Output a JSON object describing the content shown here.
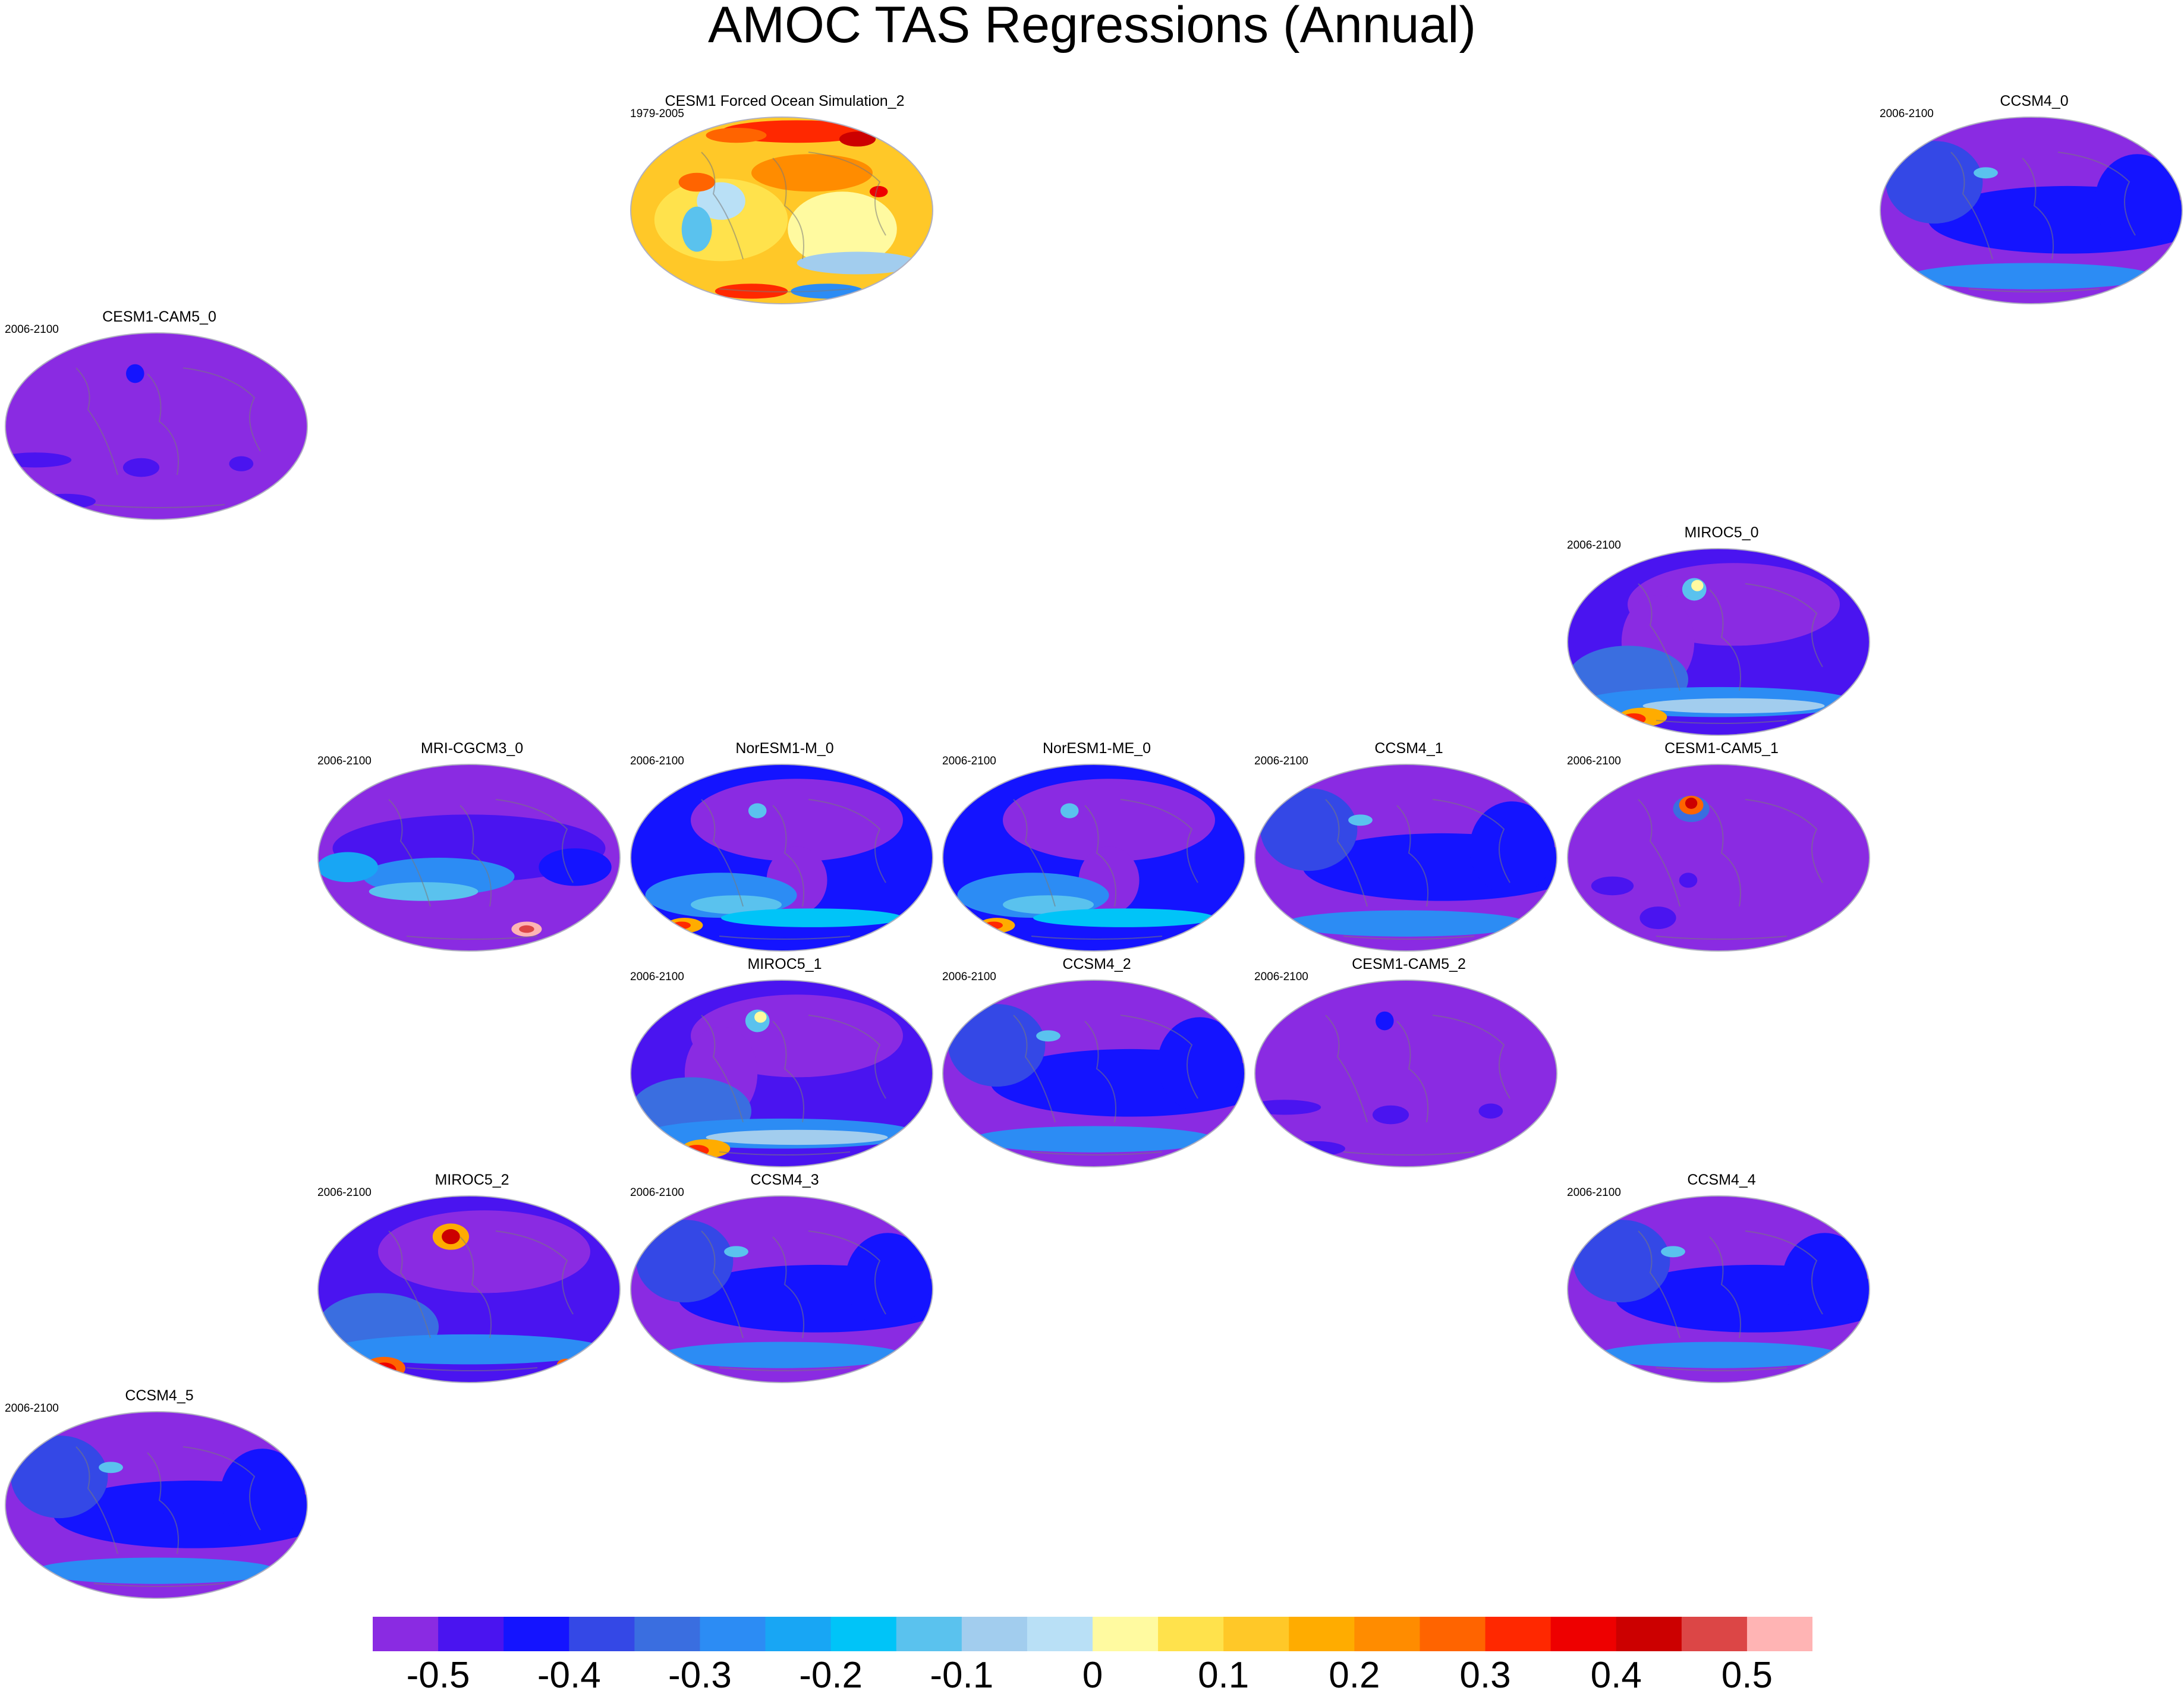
{
  "title": "AMOC TAS Regressions (Annual)",
  "panels": [
    {
      "title": "CESM1 Forced Ocean Simulation_2",
      "period": "1979-2005",
      "col": 2,
      "row": 0,
      "style": "obs"
    },
    {
      "title": "CCSM4_0",
      "period": "2006-2100",
      "col": 6,
      "row": 0,
      "style": "ccsm4"
    },
    {
      "title": "CESM1-CAM5_0",
      "period": "2006-2100",
      "col": 0,
      "row": 1,
      "style": "cam5"
    },
    {
      "title": "MIROC5_0",
      "period": "2006-2100",
      "col": 5,
      "row": 2,
      "style": "miroc"
    },
    {
      "title": "MRI-CGCM3_0",
      "period": "2006-2100",
      "col": 1,
      "row": 3,
      "style": "mri"
    },
    {
      "title": "NorESM1-M_0",
      "period": "2006-2100",
      "col": 2,
      "row": 3,
      "style": "noresm"
    },
    {
      "title": "NorESM1-ME_0",
      "period": "2006-2100",
      "col": 3,
      "row": 3,
      "style": "noresm"
    },
    {
      "title": "CCSM4_1",
      "period": "2006-2100",
      "col": 4,
      "row": 3,
      "style": "ccsm4"
    },
    {
      "title": "CESM1-CAM5_1",
      "period": "2006-2100",
      "col": 5,
      "row": 3,
      "style": "cam5hot"
    },
    {
      "title": "MIROC5_1",
      "period": "2006-2100",
      "col": 2,
      "row": 4,
      "style": "miroc"
    },
    {
      "title": "CCSM4_2",
      "period": "2006-2100",
      "col": 3,
      "row": 4,
      "style": "ccsm4"
    },
    {
      "title": "CESM1-CAM5_2",
      "period": "2006-2100",
      "col": 4,
      "row": 4,
      "style": "cam5"
    },
    {
      "title": "MIROC5_2",
      "period": "2006-2100",
      "col": 1,
      "row": 5,
      "style": "mirochot"
    },
    {
      "title": "CCSM4_3",
      "period": "2006-2100",
      "col": 2,
      "row": 5,
      "style": "ccsm4"
    },
    {
      "title": "CCSM4_4",
      "period": "2006-2100",
      "col": 5,
      "row": 5,
      "style": "ccsm4"
    },
    {
      "title": "CCSM4_5",
      "period": "2006-2100",
      "col": 0,
      "row": 6,
      "style": "ccsm4"
    }
  ],
  "colorbar": {
    "colors": [
      "#8a2be2",
      "#4a14f0",
      "#1414ff",
      "#3448e6",
      "#3a6ee0",
      "#2c8cf4",
      "#18a6f4",
      "#00c4f8",
      "#5ac2ee",
      "#a2cdee",
      "#b9e0f6",
      "#fffaa0",
      "#ffe24c",
      "#ffc828",
      "#ffac00",
      "#ff8c00",
      "#ff6400",
      "#ff2800",
      "#ee0000",
      "#cc0000",
      "#dc4646",
      "#ffb4b4"
    ],
    "labels": [
      "-0.5",
      "-0.4",
      "-0.3",
      "-0.2",
      "-0.1",
      "0",
      "0.1",
      "0.2",
      "0.3",
      "0.4",
      "0.5"
    ]
  }
}
